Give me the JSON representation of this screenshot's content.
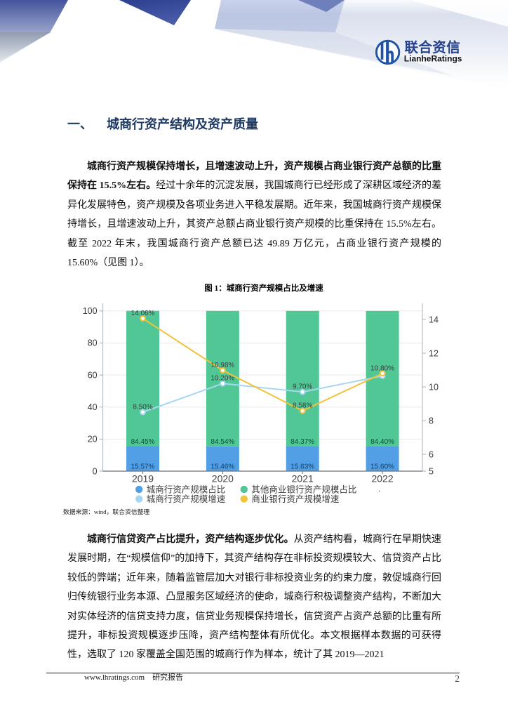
{
  "header": {
    "logo_cn": "联合资信",
    "logo_en": "LianheRatings",
    "logo_color": "#2052A8"
  },
  "heading": {
    "index": "一、",
    "title": "城商行资产结构及资产质量"
  },
  "para1": {
    "lead": "城商行资产规模保持增长，且增速波动上升，资产规模占商业银行资产总额的比重保持在 15.5%左右。",
    "text": "经过十余年的沉淀发展，我国城商行已经形成了深耕区域经济的差异化发展特色，资产规模及各项业务进入平稳发展期。近年来，我国城商行资产规模保持增长，且增速波动上升，其资产总额占商业银行资产规模的比重保持在 15.5%左右。截至 2022 年末，我国城商行资产总额已达 49.89 万亿元，占商业银行资产规模的 15.60%（见图 1）。"
  },
  "figure": {
    "caption": "图 1：城商行资产规模占比及增速",
    "source": "数据来源：wind，联合资信整理",
    "stray_dot": "."
  },
  "chart_data": {
    "type": "bar",
    "subtype": "stacked bars with two line series",
    "title": "图 1：城商行资产规模占比及增速",
    "categories": [
      "2019",
      "2020",
      "2021",
      "2022"
    ],
    "series": [
      {
        "name": "城商行资产规模占比",
        "type": "bar",
        "axis": "left",
        "color": "#529FE5",
        "label_color": "#123F66",
        "values": [
          15.57,
          15.46,
          15.63,
          15.6
        ],
        "labels": [
          "15.57%",
          "15.46%",
          "15.63%",
          "15.60%"
        ]
      },
      {
        "name": "其他商业银行资产规模占比",
        "type": "bar",
        "axis": "left",
        "color": "#50C795",
        "label_color": "#0E4F35",
        "values": [
          84.45,
          84.54,
          84.37,
          84.4
        ],
        "labels": [
          "84.45%",
          "84.54%",
          "84.37%",
          "84.40%"
        ]
      },
      {
        "name": "城商行资产规模增速",
        "type": "line",
        "axis": "right",
        "color": "#A6D7F2",
        "label_color": "#3E3E3E",
        "values": [
          8.5,
          10.2,
          9.7,
          10.65
        ],
        "labels": [
          "8.50%",
          "10.20%",
          "9.70%",
          ""
        ]
      },
      {
        "name": "商业银行资产规模增速",
        "type": "line",
        "axis": "right",
        "color": "#F3C23B",
        "label_color": "#3E3E3E",
        "values": [
          14.06,
          10.98,
          8.58,
          10.8
        ],
        "labels": [
          "14.06%",
          "10.98%",
          "8.58%",
          "10.80%"
        ]
      }
    ],
    "left_axis": {
      "min": 0,
      "max": 100,
      "ticks": [
        0,
        20,
        40,
        60,
        80,
        100
      ]
    },
    "right_axis": {
      "min": 5,
      "ticks": [
        5,
        6,
        8,
        10,
        12,
        14
      ]
    },
    "grid": true,
    "legend_position": "bottom"
  },
  "para2": {
    "lead": "城商行信贷资产占比提升，资产结构逐步优化。",
    "text": "从资产结构看，城商行在早期快速发展时期，在“规模信仰”的加持下，其资产结构存在非标投资规模较大、信贷资产占比较低的弊端；近年来，随着监管层加大对银行非标投资业务的约束力度，敦促城商行回归传统银行业务本源、凸显服务区域经济的使命，城商行积极调整资产结构，不断加大对实体经济的信贷支持力度，信贷业务规模保持增长，信贷资产占资产总额的比重有所提升，非标投资规模逐步压降，资产结构整体有所优化。本文根据样本数据的可获得性，选取了 120 家覆盖全国范围的城商行作为样本，统计了其 2019—2021"
  },
  "footer": {
    "url": "www.lhratings.com",
    "label": "研究报告",
    "page": "2"
  }
}
